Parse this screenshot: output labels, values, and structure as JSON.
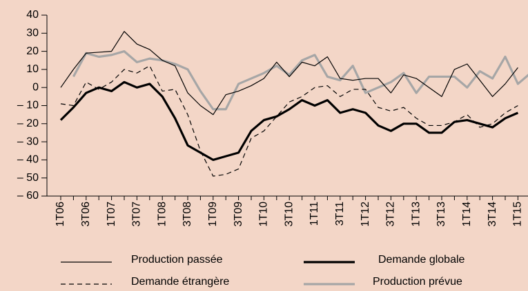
{
  "chart_data": {
    "type": "line",
    "categories": [
      "1T06",
      null,
      "3T06",
      null,
      "1T07",
      null,
      "3T07",
      null,
      "1T08",
      null,
      "3T08",
      null,
      "1T09",
      null,
      "3T09",
      null,
      "1T10",
      null,
      "3T10",
      null,
      "1T11",
      null,
      "3T11",
      null,
      "1T12",
      null,
      "3T12",
      null,
      "1T13",
      null,
      "3T13",
      null,
      "1T14",
      null,
      "3T14",
      null,
      "1T15",
      null
    ],
    "series": [
      {
        "name": "Production passée",
        "color": "#000000",
        "width": 1.2,
        "dash": "none",
        "values": [
          0,
          10,
          19,
          19.5,
          20,
          31,
          24,
          21,
          15,
          12,
          -3,
          -10,
          -15,
          -4,
          -2,
          1,
          5,
          14,
          6,
          14,
          12,
          17,
          5,
          4,
          5,
          5,
          -3,
          7,
          5,
          0,
          -5,
          10,
          13,
          4,
          -5,
          2,
          11,
          null
        ]
      },
      {
        "name": "Demande globale",
        "color": "#000000",
        "width": 3.2,
        "dash": "none",
        "values": [
          -18,
          -11,
          -3,
          0,
          -2,
          3,
          0,
          2,
          -5,
          -17,
          -32,
          -36,
          -40,
          -38,
          -36,
          -24,
          -18,
          -16,
          -12,
          -7,
          -10,
          -7,
          -14,
          -12,
          -14,
          -21,
          -24,
          -20,
          -20,
          -25,
          -25,
          -19,
          -18,
          -20,
          -22,
          -17,
          -14,
          null
        ]
      },
      {
        "name": "Demande étrangère",
        "color": "#000000",
        "width": 1.2,
        "dash": "7 5",
        "values": [
          -9,
          -10,
          3,
          -1,
          3,
          10,
          8,
          12,
          -2,
          -1,
          -15,
          -35,
          -49,
          -48,
          -45,
          -28,
          -24,
          -16,
          -8,
          -5,
          0,
          1,
          -5,
          -1,
          -1,
          -11,
          -13,
          -11,
          -17,
          -21,
          -21,
          -19,
          -15,
          -22,
          -20,
          -14,
          -10,
          null
        ]
      },
      {
        "name": "Production prévue",
        "color": "#a6a6a6",
        "width": 3.2,
        "dash": "none",
        "values": [
          null,
          6,
          19,
          17,
          18,
          20,
          14,
          16,
          15,
          13,
          10,
          -2,
          -12,
          -12,
          2,
          5,
          8,
          12,
          7,
          15,
          18,
          6,
          4,
          12,
          -3,
          0,
          3,
          8,
          -3,
          6,
          6,
          6,
          0,
          9,
          5,
          17,
          2,
          8
        ]
      }
    ],
    "ylim": [
      -60,
      40
    ],
    "yticks": [
      {
        "value": -60,
        "label": "– 60"
      },
      {
        "value": -50,
        "label": "– 50"
      },
      {
        "value": -40,
        "label": "– 40"
      },
      {
        "value": -30,
        "label": "– 30"
      },
      {
        "value": -20,
        "label": "– 20"
      },
      {
        "value": -10,
        "label": "– 10"
      },
      0,
      10,
      20,
      30,
      40
    ]
  }
}
